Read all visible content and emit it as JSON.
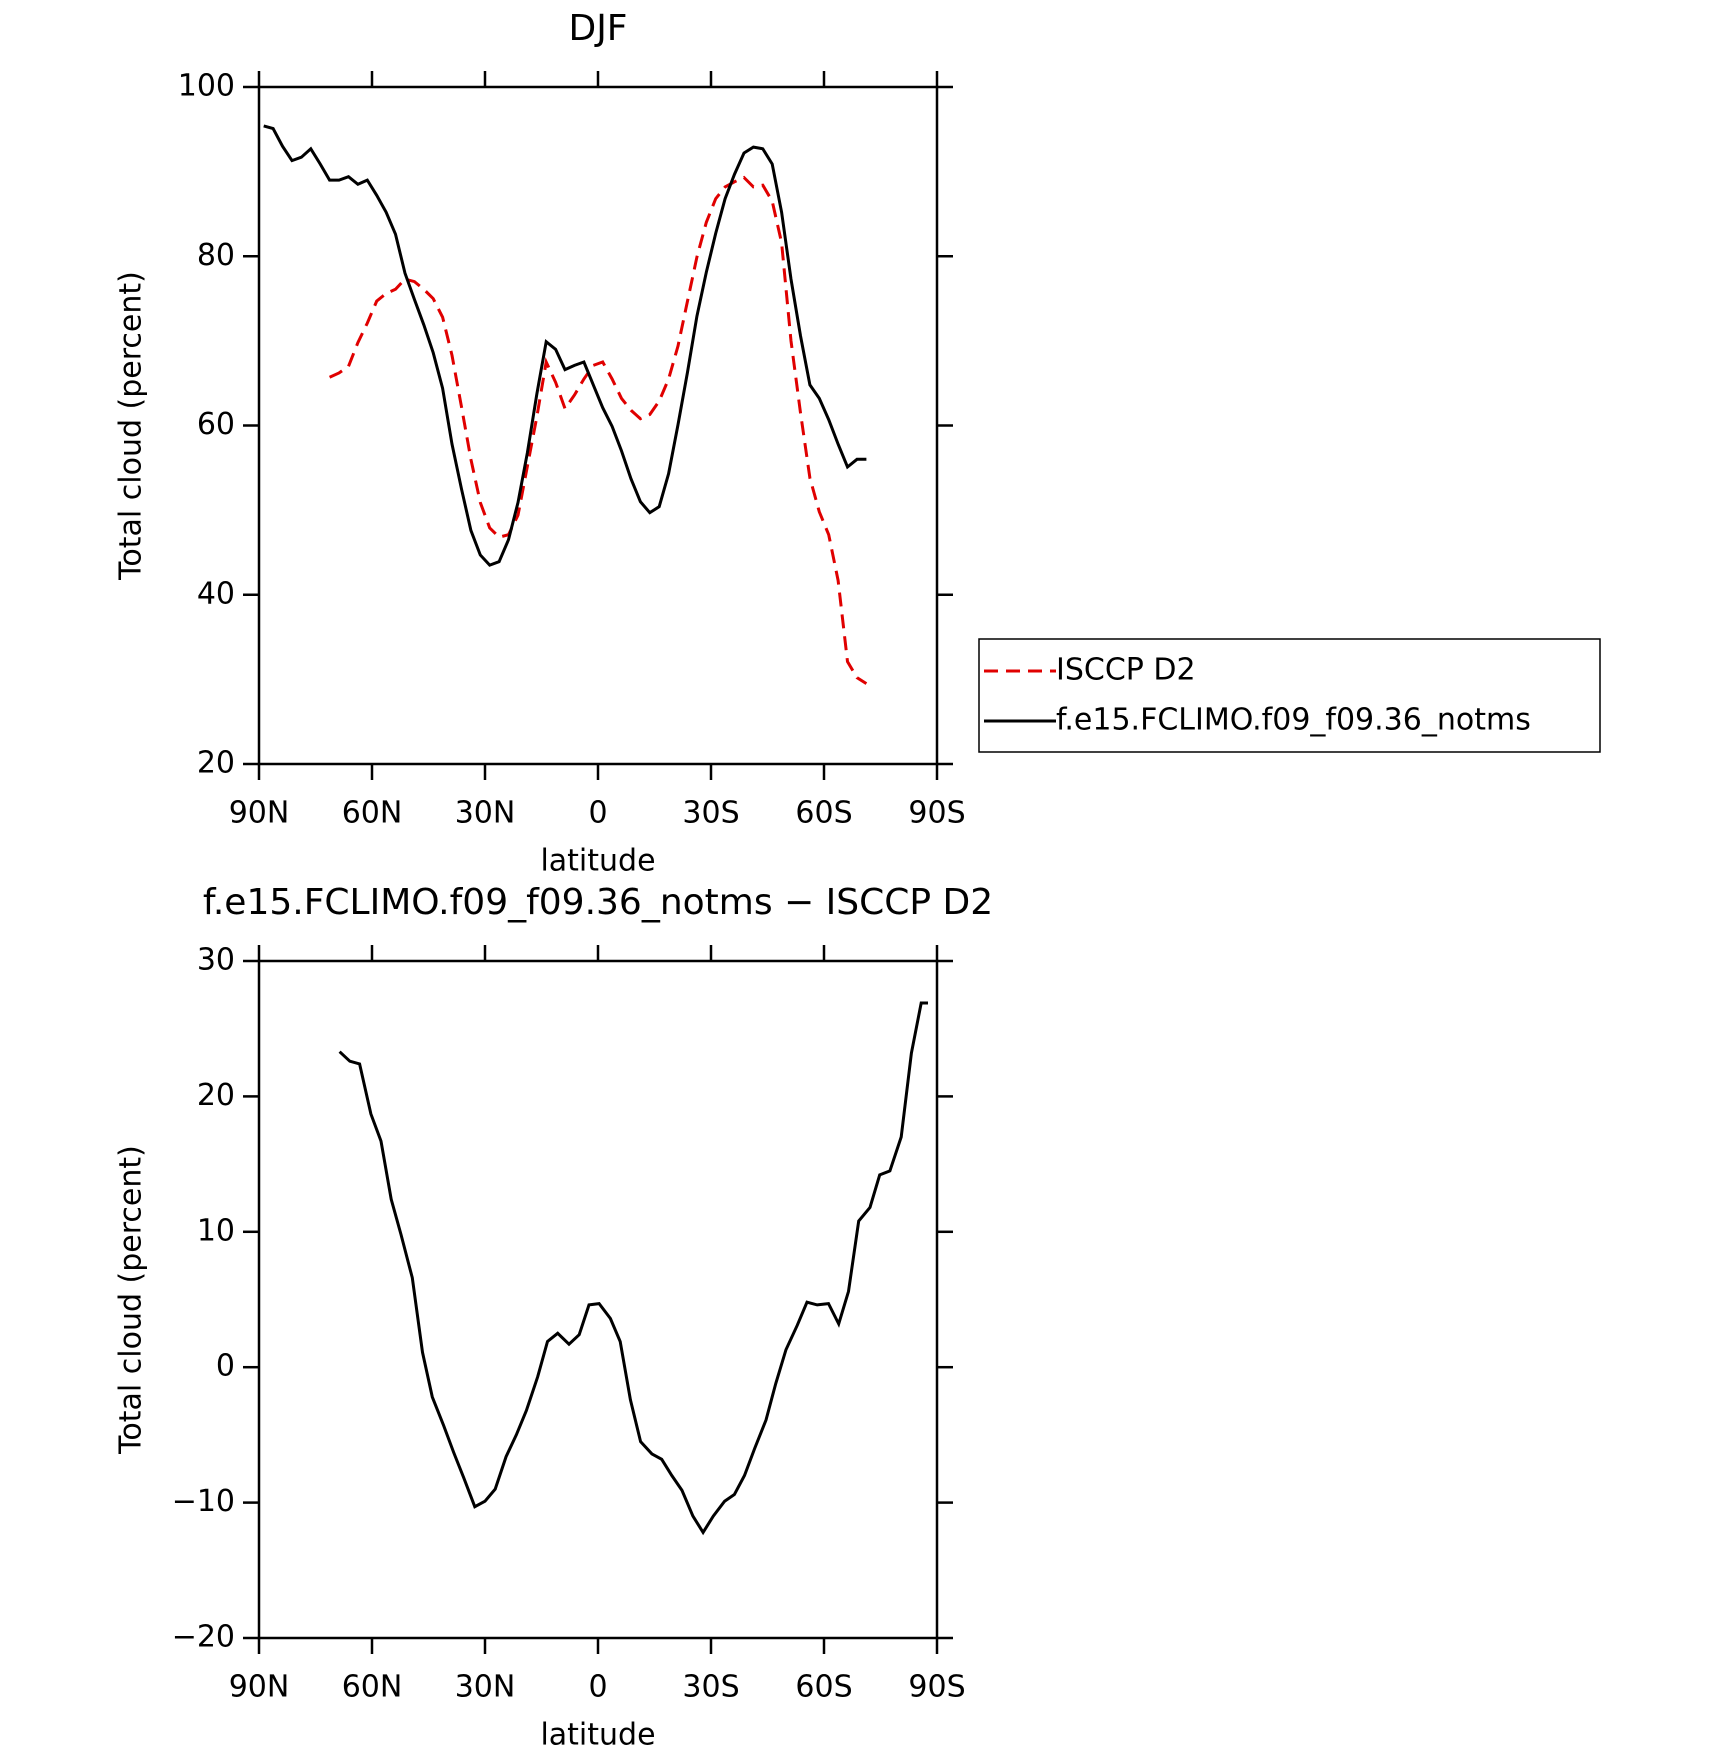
{
  "chart_data": [
    {
      "type": "line",
      "title": "DJF",
      "xlabel": "latitude",
      "ylabel": "Total cloud (percent)",
      "xlim": [
        90,
        -90
      ],
      "xticks": [
        {
          "value": 90,
          "label": "90N"
        },
        {
          "value": 60,
          "label": "60N"
        },
        {
          "value": 30,
          "label": "30N"
        },
        0,
        {
          "value": -30,
          "label": "30S"
        },
        {
          "value": -60,
          "label": "60S"
        },
        {
          "value": -90,
          "label": "90S"
        }
      ],
      "ylim": [
        20,
        100
      ],
      "yticks": [
        20,
        40,
        60,
        80,
        100
      ],
      "legend": "right",
      "x": [
        88.75,
        86.25,
        83.75,
        81.25,
        78.75,
        76.25,
        73.75,
        71.25,
        68.75,
        66.25,
        63.75,
        61.25,
        58.75,
        56.25,
        53.75,
        51.25,
        48.75,
        46.25,
        43.75,
        41.25,
        38.75,
        36.25,
        33.75,
        31.25,
        28.75,
        26.25,
        23.75,
        21.25,
        18.75,
        16.25,
        13.75,
        11.25,
        8.75,
        6.25,
        3.75,
        1.25,
        -1.25,
        -3.75,
        -6.25,
        -8.75,
        -11.25,
        -13.75,
        -16.25,
        -18.75,
        -21.25,
        -23.75,
        -26.25,
        -28.75,
        -31.25,
        -33.75,
        -36.25,
        -38.75,
        -41.25,
        -43.75,
        -46.25,
        -48.75,
        -51.25,
        -53.75,
        -56.25,
        -58.75,
        -61.25,
        -63.75,
        -66.25,
        -68.75,
        -71.25,
        -73.75,
        -76.25,
        -78.75,
        -81.25,
        -83.75,
        -86.25
      ],
      "series": [
        {
          "name": "ISCCP D2",
          "color": "#e00000",
          "dash": true,
          "values": [
            null,
            null,
            null,
            null,
            null,
            null,
            null,
            65.7,
            66.2,
            67,
            69.8,
            72.1,
            74.7,
            75.6,
            76.1,
            77.3,
            77,
            76.1,
            75,
            72.8,
            68.3,
            62.2,
            56,
            50.9,
            47.9,
            46.8,
            47.1,
            49.4,
            55.2,
            61,
            67.5,
            65.1,
            62,
            63.6,
            65.5,
            67.1,
            67.5,
            65.5,
            63.2,
            61.8,
            60.8,
            61.3,
            62.9,
            65.5,
            69.4,
            74.7,
            79.9,
            84,
            86.8,
            88.2,
            88.8,
            89.3,
            88.2,
            88.4,
            86.5,
            81.6,
            70,
            61.5,
            53.8,
            49.8,
            47.1,
            41.7,
            32.1,
            30.2,
            29.5,
            null,
            null,
            null,
            null,
            null,
            null
          ]
        },
        {
          "name": "f.e15.FCLIMO.f09_f09.36_notms",
          "color": "#000000",
          "dash": false,
          "values": [
            95.4,
            95.1,
            93,
            91.3,
            91.7,
            92.7,
            90.9,
            89,
            89,
            89.4,
            88.5,
            89,
            87.2,
            85.2,
            82.6,
            78,
            74.9,
            71.9,
            68.6,
            64.4,
            57.8,
            52.5,
            47.6,
            44.7,
            43.5,
            43.9,
            46.5,
            50.9,
            56.8,
            63.7,
            69.9,
            69,
            66.6,
            67.1,
            67.5,
            64.8,
            62.1,
            59.9,
            57,
            53.7,
            51,
            49.7,
            50.4,
            54.3,
            60.1,
            66.3,
            72.9,
            78.1,
            82.7,
            86.8,
            89.7,
            92.2,
            92.9,
            92.7,
            90.9,
            85.2,
            77.3,
            70.6,
            64.8,
            63.2,
            60.7,
            57.8,
            55.1,
            56,
            56,
            null,
            null,
            null,
            null,
            null,
            null
          ]
        }
      ]
    },
    {
      "type": "line",
      "title": "f.e15.FCLIMO.f09_f09.36_notms − ISCCP D2",
      "xlabel": "latitude",
      "ylabel": "Total cloud (percent)",
      "xlim": [
        90,
        -90
      ],
      "xticks": [
        {
          "value": 90,
          "label": "90N"
        },
        {
          "value": 60,
          "label": "60N"
        },
        {
          "value": 30,
          "label": "30N"
        },
        0,
        {
          "value": -30,
          "label": "30S"
        },
        {
          "value": -60,
          "label": "60S"
        },
        {
          "value": -90,
          "label": "90S"
        }
      ],
      "ylim": [
        -20,
        30
      ],
      "yticks": [
        {
          "value": -20,
          "label": "−20"
        },
        {
          "value": -10,
          "label": "−10"
        },
        0,
        10,
        20,
        30
      ],
      "x": [
        68.6,
        65.9,
        63.3,
        60.3,
        57.6,
        54.9,
        52.3,
        49.3,
        46.6,
        44,
        41,
        38.3,
        35.6,
        32.7,
        30,
        27.3,
        24.4,
        21.7,
        19,
        16,
        13.4,
        10.7,
        7.7,
        5,
        2.4,
        -0.3,
        -3.3,
        -5.9,
        -8.6,
        -11.3,
        -14.3,
        -16.9,
        -19.6,
        -22.3,
        -25.2,
        -27.9,
        -30.6,
        -33.6,
        -36.2,
        -38.9,
        -41.6,
        -44.6,
        -47.2,
        -49.9,
        -52.9,
        -55.5,
        -58.2,
        -61.2,
        -63.9,
        -66.5,
        -69.2,
        -72.2,
        -74.8,
        -77.5,
        -80.5,
        -83.2,
        -85.8,
        -87.6
      ],
      "series": [
        {
          "color": "#000000",
          "dash": false,
          "values": [
            23.3,
            22.6,
            22.4,
            18.7,
            16.7,
            12.4,
            9.8,
            6.6,
            1.1,
            -2.2,
            -4.3,
            -6.3,
            -8.2,
            -10.3,
            -9.9,
            -9,
            -6.6,
            -5,
            -3.2,
            -0.7,
            1.9,
            2.5,
            1.7,
            2.4,
            4.6,
            4.7,
            3.6,
            1.9,
            -2.4,
            -5.5,
            -6.4,
            -6.8,
            -8,
            -9.1,
            -11,
            -12.2,
            -11,
            -9.9,
            -9.4,
            -8,
            -6,
            -3.9,
            -1.2,
            1.3,
            3.1,
            4.8,
            4.6,
            4.7,
            3.2,
            5.6,
            10.8,
            11.8,
            14.2,
            14.5,
            17,
            23.2,
            26.9,
            26.9
          ]
        }
      ]
    }
  ]
}
